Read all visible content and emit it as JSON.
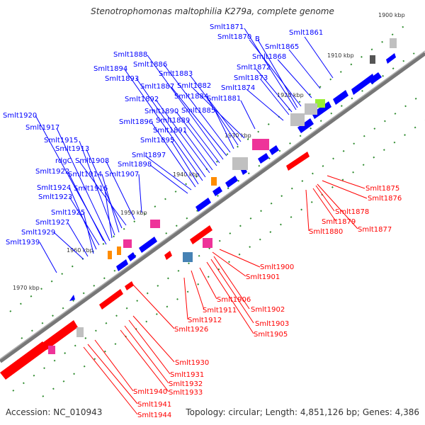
{
  "title": "Stenotrophomonas maltophilia K279a, complete genome",
  "accession": "Accession: NC_010943",
  "summary": "Topology: circular; Length: 4,851,126 bp; Genes: 4,386",
  "ticks": [
    "1900 kbp",
    "1910 kbp",
    "1920 kbp",
    "1930 kbp",
    "1940 kbp",
    "1950 kbp",
    "1960 kbp",
    "1970 kbp"
  ],
  "plus_strand_labels": [
    "Smlt1861",
    "Smlt1865",
    "Smlt1868",
    "Smlt1870",
    "Smlt1871",
    "B",
    "Smlt1872",
    "Smlt1873",
    "Smlt1874",
    "Smlt1881",
    "Smlt1882",
    "Smlt1883",
    "Smlt1884",
    "Smlt1885",
    "Smlt1886",
    "Smlt1887",
    "Smlt1888",
    "Smlt1889",
    "Smlt1890",
    "Smlt1891",
    "Smlt1892",
    "Smlt1893",
    "Smlt1894",
    "Smlt1895",
    "Smlt1896",
    "Smlt1897",
    "Smlt1898",
    "Smlt1907",
    "Smlt1908",
    "rdgC",
    "Smlt1913",
    "Smlt1914",
    "Smlt1915",
    "Smlt1916",
    "Smlt1917",
    "Smlt1920",
    "Smlt1922",
    "Smlt1923",
    "Smlt1924",
    "Smlt1925",
    "Smlt1927",
    "Smlt1929",
    "Smlt1939"
  ],
  "minus_strand_labels": [
    "Smlt1875",
    "Smlt1876",
    "Smlt1877",
    "Smlt1878",
    "Smlt1879",
    "Smlt1880",
    "Smlt1900",
    "Smlt1901",
    "Smlt1902",
    "Smlt1903",
    "Smlt1905",
    "Smlt1906",
    "Smlt1911",
    "Smlt1912",
    "Smlt1926",
    "Smlt1930",
    "Smlt1931",
    "Smlt1932",
    "Smlt1933",
    "Smlt1940",
    "Smlt1941",
    "Smlt1944"
  ],
  "colors": {
    "plus_strand": "#0000ff",
    "minus_strand": "#ff0000",
    "backbone": "#808080",
    "tick_marks": "#2e8b2e",
    "gray_feature": "#c0c0c0",
    "pink_feature": "#ee3399",
    "orange_feature": "#ff8c00",
    "steelblue_feature": "#4682b4",
    "lime_feature": "#99ee33",
    "dark_feature": "#555555"
  }
}
